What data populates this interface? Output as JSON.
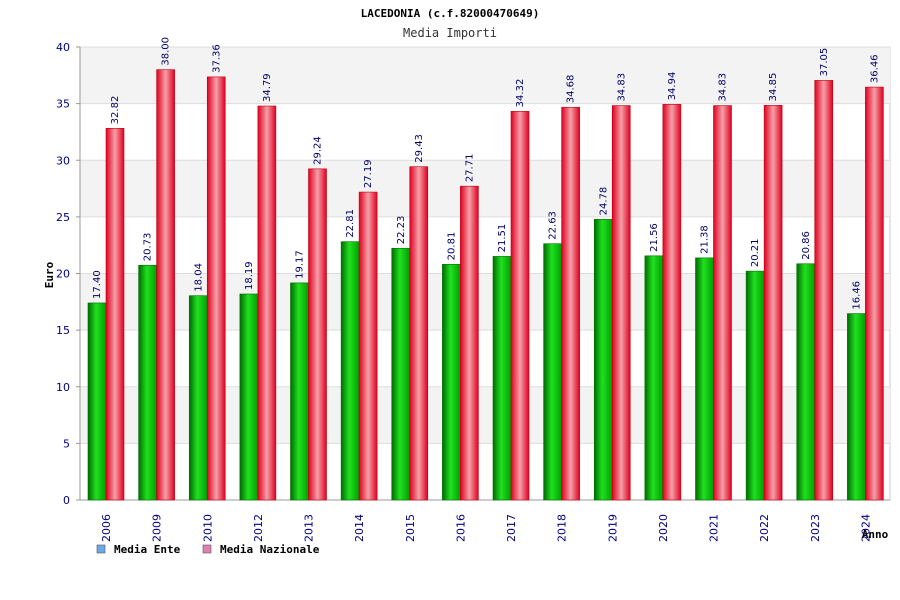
{
  "chart_data": {
    "type": "bar",
    "title": "LACEDONIA (c.f.82000470649)",
    "subtitle": "Media Importi",
    "ylabel": "Euro",
    "xlabel": "Anno",
    "ylim": [
      0,
      40
    ],
    "yticks": [
      0,
      5,
      10,
      15,
      20,
      25,
      30,
      35,
      40
    ],
    "grid": true,
    "legend_position": "bottom-left",
    "categories": [
      "2006",
      "2009",
      "2010",
      "2012",
      "2013",
      "2014",
      "2015",
      "2016",
      "2017",
      "2018",
      "2019",
      "2020",
      "2021",
      "2022",
      "2023",
      "2024"
    ],
    "series": [
      {
        "name": "Media Ente",
        "color": "#00b000",
        "legend_color": "#6aa8e8",
        "values": [
          17.4,
          20.73,
          18.04,
          18.19,
          19.17,
          22.81,
          22.23,
          20.81,
          21.51,
          22.63,
          24.78,
          21.56,
          21.38,
          20.21,
          20.86,
          16.46
        ],
        "labels": [
          "17.40",
          "20.73",
          "18.04",
          "18.19",
          "19.17",
          "22.81",
          "22.23",
          "20.81",
          "21.51",
          "22.63",
          "24.78",
          "21.56",
          "21.38",
          "20.21",
          "20.86",
          "16.46"
        ]
      },
      {
        "name": "Media Nazionale",
        "color": "#e00020",
        "legend_color": "#e080b0",
        "values": [
          32.82,
          38.0,
          37.36,
          34.79,
          29.24,
          27.19,
          29.43,
          27.71,
          34.32,
          34.68,
          34.83,
          34.94,
          34.83,
          34.85,
          37.05,
          36.46
        ],
        "labels": [
          "32.82",
          "38.00",
          "37.36",
          "34.79",
          "29.24",
          "27.19",
          "29.43",
          "27.71",
          "34.32",
          "34.68",
          "34.83",
          "34.94",
          "34.83",
          "34.85",
          "37.05",
          "36.46"
        ]
      }
    ]
  }
}
